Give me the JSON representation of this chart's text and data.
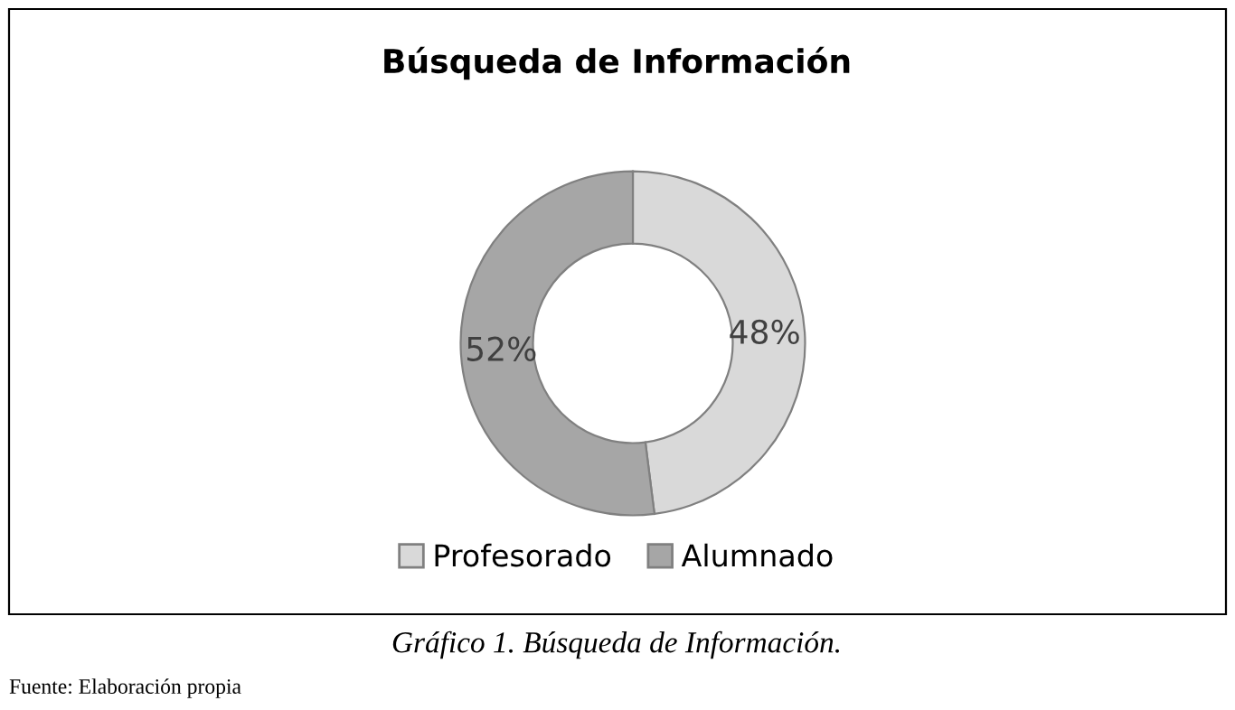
{
  "chart_data": {
    "type": "donut",
    "title": "Búsqueda de Información",
    "categories": [
      "Profesorado",
      "Alumnado"
    ],
    "values": [
      48,
      52
    ],
    "colors": [
      "#d9d9d9",
      "#a6a6a6"
    ],
    "value_labels": [
      "48%",
      "52%"
    ],
    "legend": "bottom",
    "annotations": [
      "Gráfico 1. Búsqueda de Información.",
      "Fuente: Elaboración propia"
    ]
  }
}
